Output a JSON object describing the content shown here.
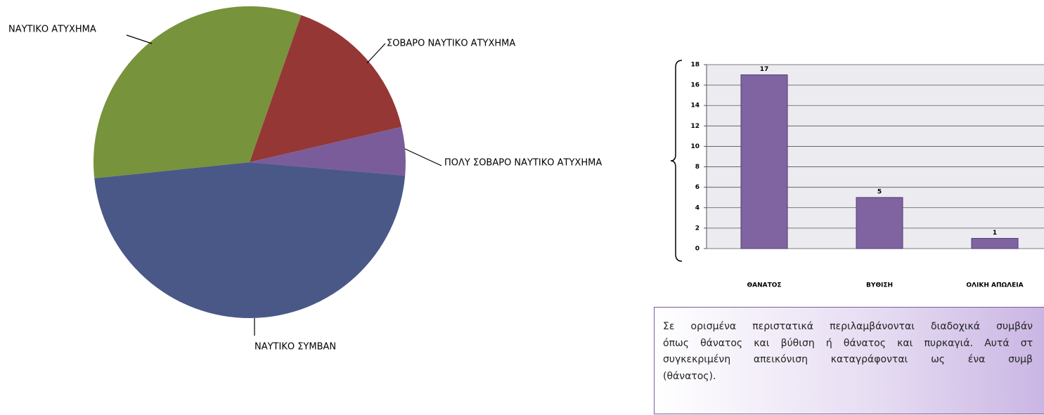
{
  "chart_data": [
    {
      "type": "pie",
      "categories": [
        "ΣΟΒΑΡΟ ΝΑΥΤΙΚΟ ΑΤΥΧΗΜΑ",
        "ΠΟΛΥ ΣΟΒΑΡΟ ΝΑΥΤΙΚΟ ΑΤΥΧΗΜΑ",
        "ΝΑΥΤΙΚΟ ΣΥΜΒΑΝ",
        "ΝΑΥΤΙΚΟ ΑΤΥΧΗΜΑ"
      ],
      "values": [
        16,
        5,
        47,
        32
      ],
      "colors": [
        "#953735",
        "#7a5c9a",
        "#4a5888",
        "#77933c"
      ]
    },
    {
      "type": "bar",
      "categories": [
        "ΘΑΝΑΤΟΣ",
        "ΒΥΘΙΣΗ",
        "ΟΛΙΚΗ ΑΠΩΛΕΙΑ"
      ],
      "values": [
        17,
        5,
        1
      ],
      "color": "#8064a2",
      "ylim": [
        0,
        18
      ],
      "yticks": [
        0,
        2,
        4,
        6,
        8,
        10,
        12,
        14,
        16,
        18
      ],
      "grid": true
    }
  ],
  "note": [
    "Σε ορισμένα περιστατικά περιλαμβάνονται διαδοχικά συμβάν",
    "όπως θάνατος και βύθιση ή θάνατος και πυρκαγιά. Αυτά στ",
    "συγκεκριμένη απεικόνιση καταγράφονται ως ένα συμβ",
    "(θάνατος)."
  ]
}
